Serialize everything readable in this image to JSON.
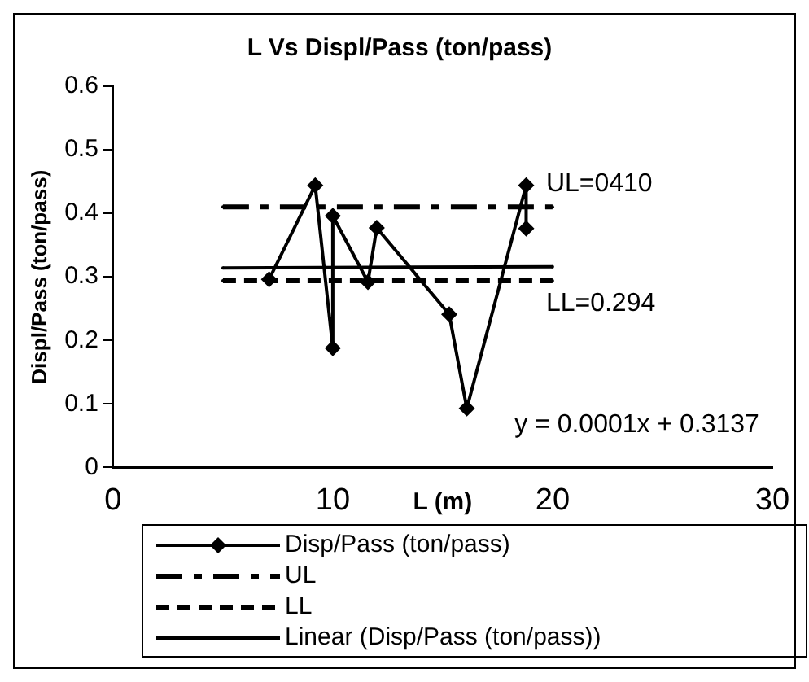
{
  "chart_data": {
    "type": "line",
    "title": "L Vs Displ/Pass (ton/pass)",
    "xlabel": "L (m)",
    "ylabel": "Displ/Pass (ton/pass)",
    "xlim": [
      0,
      30
    ],
    "xticks": [
      0,
      10,
      20,
      30
    ],
    "ylim": [
      0,
      0.6
    ],
    "yticks": [
      0,
      0.1,
      0.2,
      0.3,
      0.4,
      0.5,
      0.6
    ],
    "grid": false,
    "legend": "bottom",
    "series": [
      {
        "name": "Disp/Pass (ton/pass)",
        "color": "#000000",
        "marker": "diamond",
        "line_style": "solid",
        "x": [
          7.1,
          9.2,
          10.0,
          10.0,
          11.6,
          12.0,
          15.3,
          16.1,
          18.8,
          18.8
        ],
        "values": [
          0.296,
          0.444,
          0.188,
          0.396,
          0.292,
          0.377,
          0.241,
          0.093,
          0.444,
          0.376
        ]
      },
      {
        "name": "UL",
        "color": "#000000",
        "marker": "none",
        "line_style": "dashed",
        "x": [
          5,
          20
        ],
        "values": [
          0.41,
          0.41
        ]
      },
      {
        "name": "LL",
        "color": "#000000",
        "marker": "none",
        "line_style": "dotted",
        "x": [
          5,
          20
        ],
        "values": [
          0.294,
          0.294
        ]
      },
      {
        "name": "Linear (Disp/Pass (ton/pass))",
        "color": "#000000",
        "marker": "none",
        "line_style": "solid",
        "x": [
          5,
          20
        ],
        "values": [
          0.314,
          0.316
        ]
      }
    ],
    "annotations": [
      {
        "text": "UL=0410",
        "x": 20,
        "y": 0.41
      },
      {
        "text": "LL=0.294",
        "x": 20,
        "y": 0.294
      },
      "y = 0.0001x + 0.3137"
    ]
  }
}
